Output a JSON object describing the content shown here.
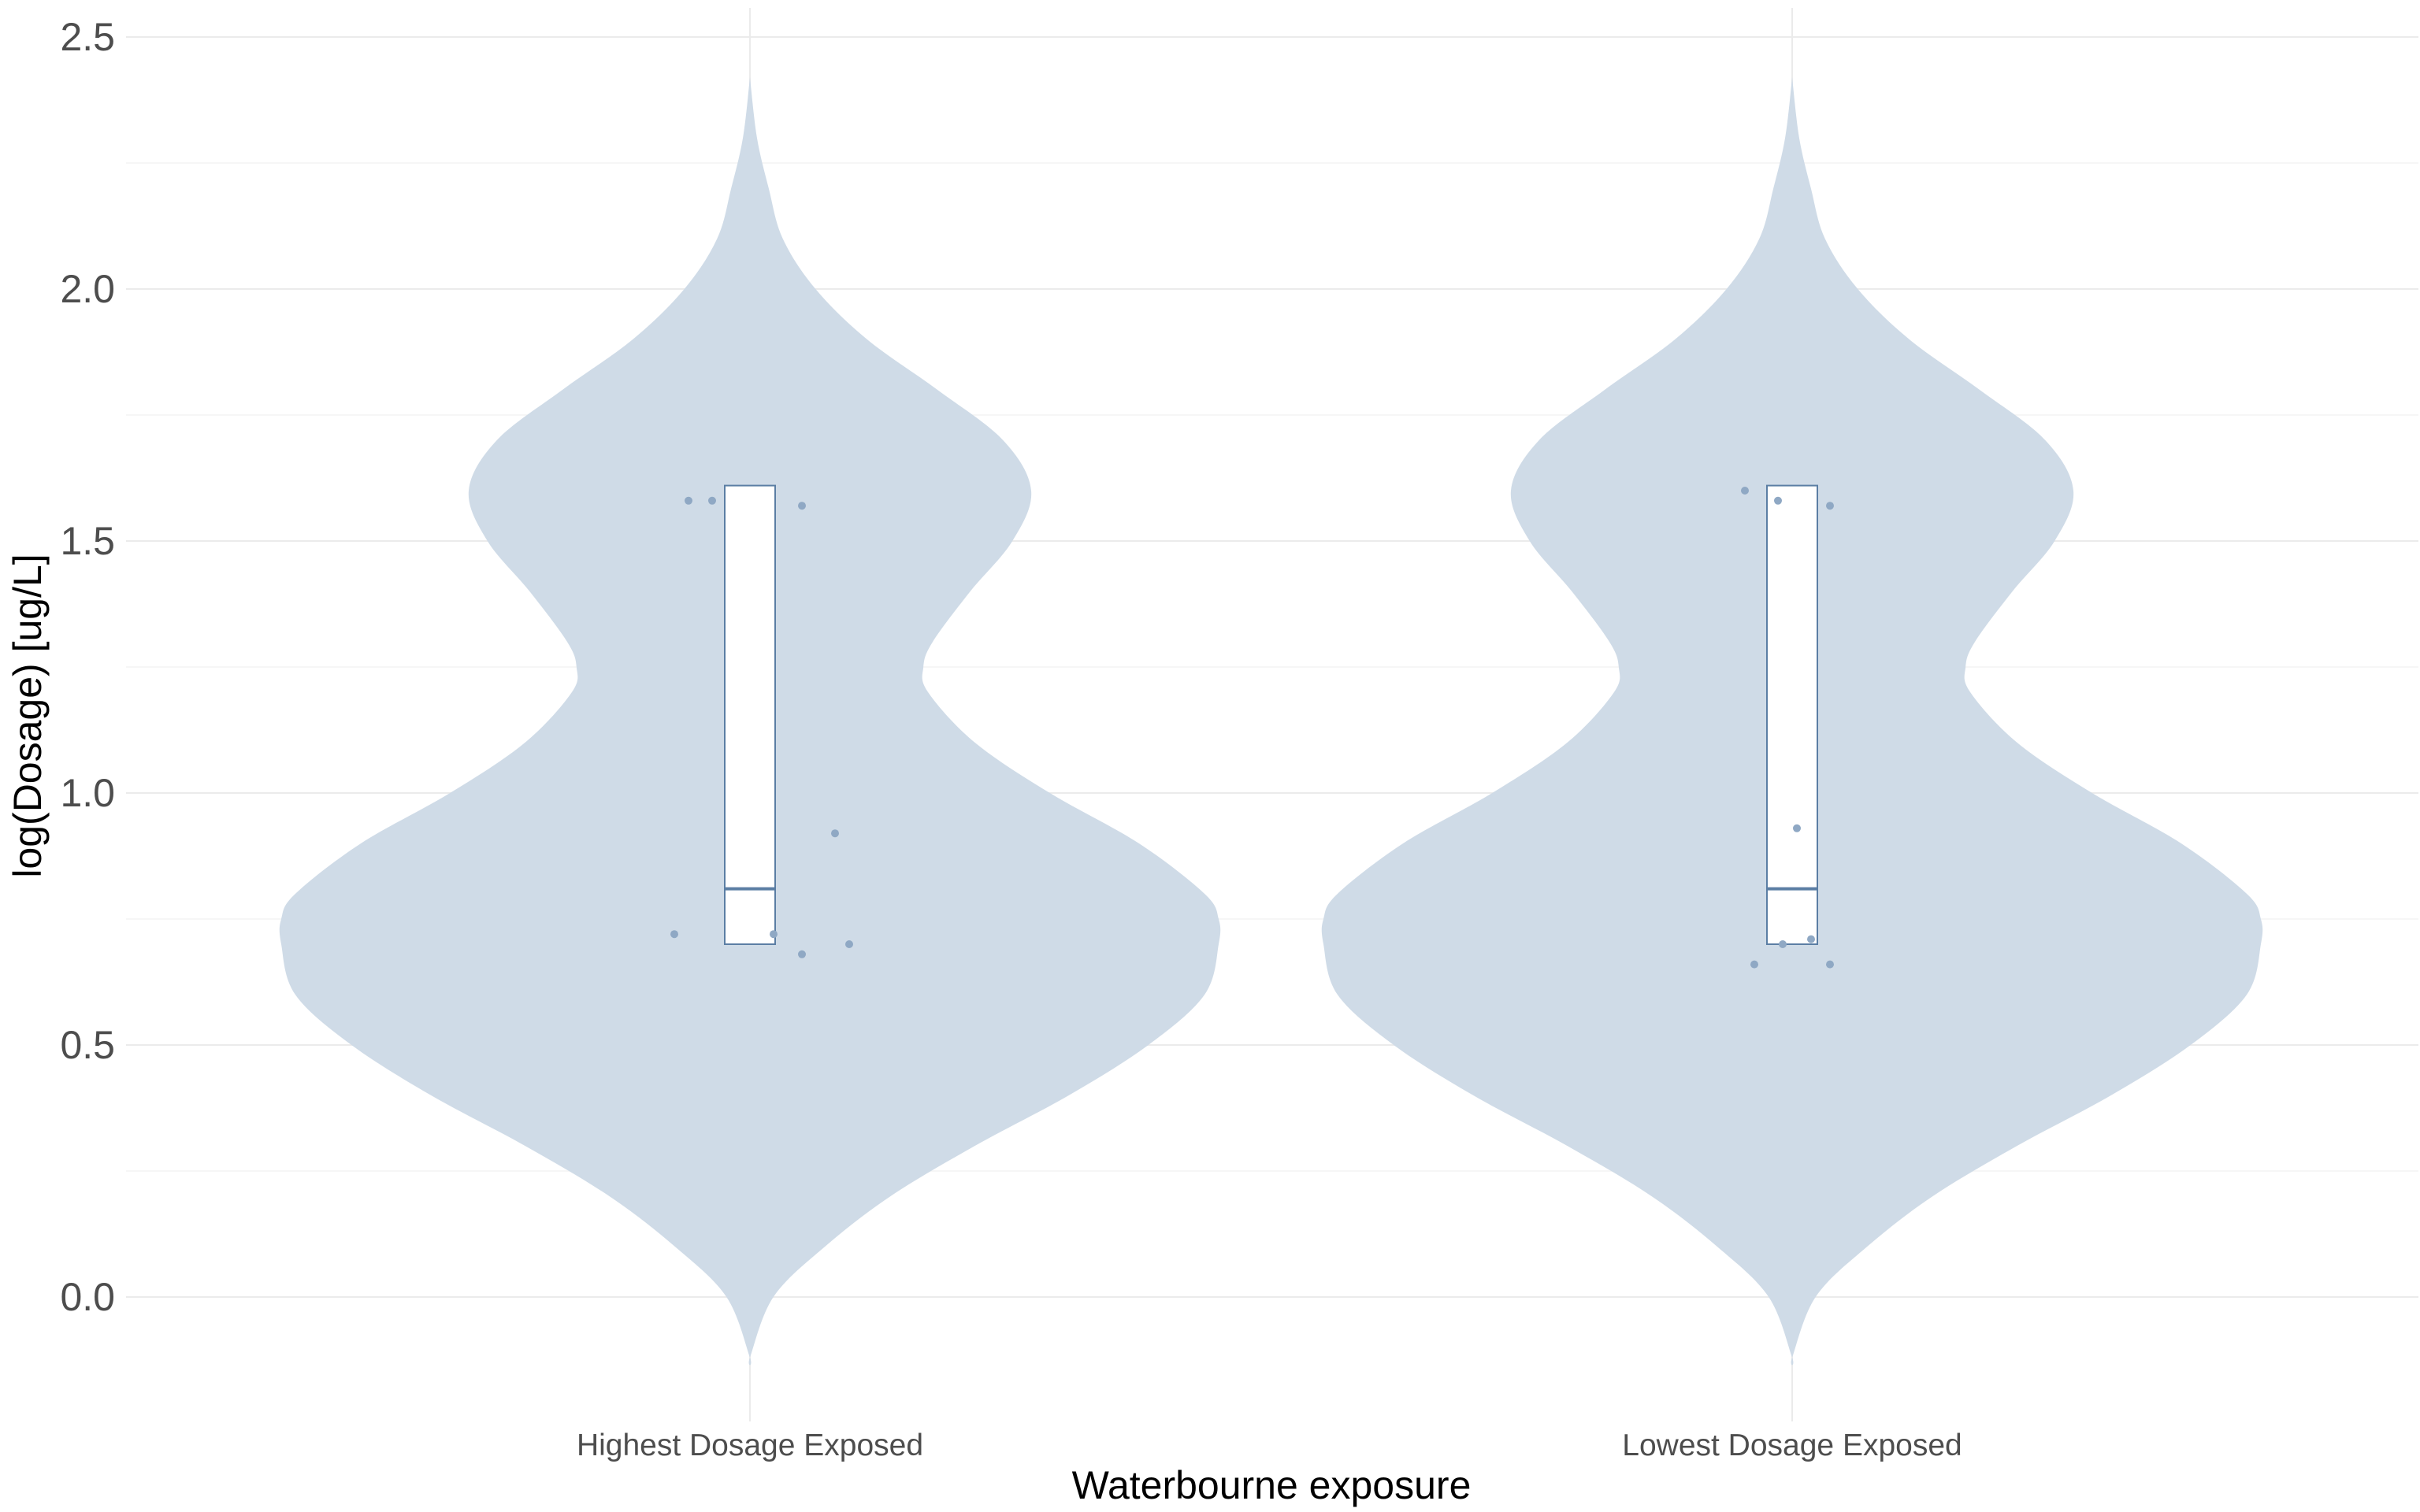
{
  "chart_data": {
    "type": "violin",
    "xlabel": "Waterbourne exposure",
    "ylabel": "log(Dosage) [ug/L]",
    "categories": [
      "Highest Dosage Exposed",
      "Lowest Dosage Exposed"
    ],
    "yticks": [
      "0.0",
      "0.5",
      "1.0",
      "1.5",
      "2.0",
      "2.5"
    ],
    "ylim": [
      -0.2,
      2.55
    ],
    "grid": true,
    "legend": "none",
    "colors": {
      "violin_fill": "#cfdbe7",
      "box_fill": "#ffffff",
      "box_stroke": "#5b7ea4",
      "point": "#8fa8c4",
      "grid_major": "#ebebeb",
      "grid_minor": "#f4f4f4"
    },
    "groups": [
      {
        "name": "Highest Dosage Exposed",
        "box": {
          "q1": 0.7,
          "median": 0.81,
          "q3": 1.61
        },
        "violin_range": [
          -0.12,
          2.42
        ],
        "density": [
          [
            -0.12,
            0.0
          ],
          [
            0.0,
            0.05
          ],
          [
            0.1,
            0.16
          ],
          [
            0.2,
            0.3
          ],
          [
            0.3,
            0.48
          ],
          [
            0.4,
            0.68
          ],
          [
            0.5,
            0.85
          ],
          [
            0.6,
            0.97
          ],
          [
            0.7,
            1.0
          ],
          [
            0.75,
            1.0
          ],
          [
            0.8,
            0.97
          ],
          [
            0.9,
            0.83
          ],
          [
            1.0,
            0.64
          ],
          [
            1.1,
            0.48
          ],
          [
            1.2,
            0.38
          ],
          [
            1.25,
            0.37
          ],
          [
            1.3,
            0.39
          ],
          [
            1.4,
            0.47
          ],
          [
            1.5,
            0.56
          ],
          [
            1.6,
            0.6
          ],
          [
            1.7,
            0.54
          ],
          [
            1.8,
            0.4
          ],
          [
            1.9,
            0.25
          ],
          [
            2.0,
            0.14
          ],
          [
            2.1,
            0.07
          ],
          [
            2.2,
            0.04
          ],
          [
            2.3,
            0.015
          ],
          [
            2.42,
            0.0
          ]
        ],
        "points": [
          [
            0.72,
            -0.16
          ],
          [
            0.68,
            0.11
          ],
          [
            0.72,
            0.05
          ],
          [
            0.7,
            0.21
          ],
          [
            0.92,
            0.18
          ],
          [
            1.58,
            -0.13
          ],
          [
            1.58,
            -0.08
          ],
          [
            1.57,
            0.11
          ]
        ]
      },
      {
        "name": "Lowest Dosage Exposed",
        "box": {
          "q1": 0.7,
          "median": 0.81,
          "q3": 1.61
        },
        "violin_range": [
          -0.12,
          2.42
        ],
        "density": [
          [
            -0.12,
            0.0
          ],
          [
            0.0,
            0.05
          ],
          [
            0.1,
            0.16
          ],
          [
            0.2,
            0.3
          ],
          [
            0.3,
            0.48
          ],
          [
            0.4,
            0.68
          ],
          [
            0.5,
            0.85
          ],
          [
            0.6,
            0.97
          ],
          [
            0.7,
            1.0
          ],
          [
            0.75,
            1.0
          ],
          [
            0.8,
            0.97
          ],
          [
            0.9,
            0.83
          ],
          [
            1.0,
            0.64
          ],
          [
            1.1,
            0.48
          ],
          [
            1.2,
            0.38
          ],
          [
            1.25,
            0.37
          ],
          [
            1.3,
            0.39
          ],
          [
            1.4,
            0.47
          ],
          [
            1.5,
            0.56
          ],
          [
            1.6,
            0.6
          ],
          [
            1.7,
            0.54
          ],
          [
            1.8,
            0.4
          ],
          [
            1.9,
            0.25
          ],
          [
            2.0,
            0.14
          ],
          [
            2.1,
            0.07
          ],
          [
            2.2,
            0.04
          ],
          [
            2.3,
            0.015
          ],
          [
            2.42,
            0.0
          ]
        ],
        "points": [
          [
            0.66,
            -0.08
          ],
          [
            0.7,
            -0.02
          ],
          [
            0.71,
            0.04
          ],
          [
            0.66,
            0.08
          ],
          [
            0.93,
            0.01
          ],
          [
            1.6,
            -0.1
          ],
          [
            1.58,
            -0.03
          ],
          [
            1.57,
            0.08
          ]
        ]
      }
    ]
  }
}
